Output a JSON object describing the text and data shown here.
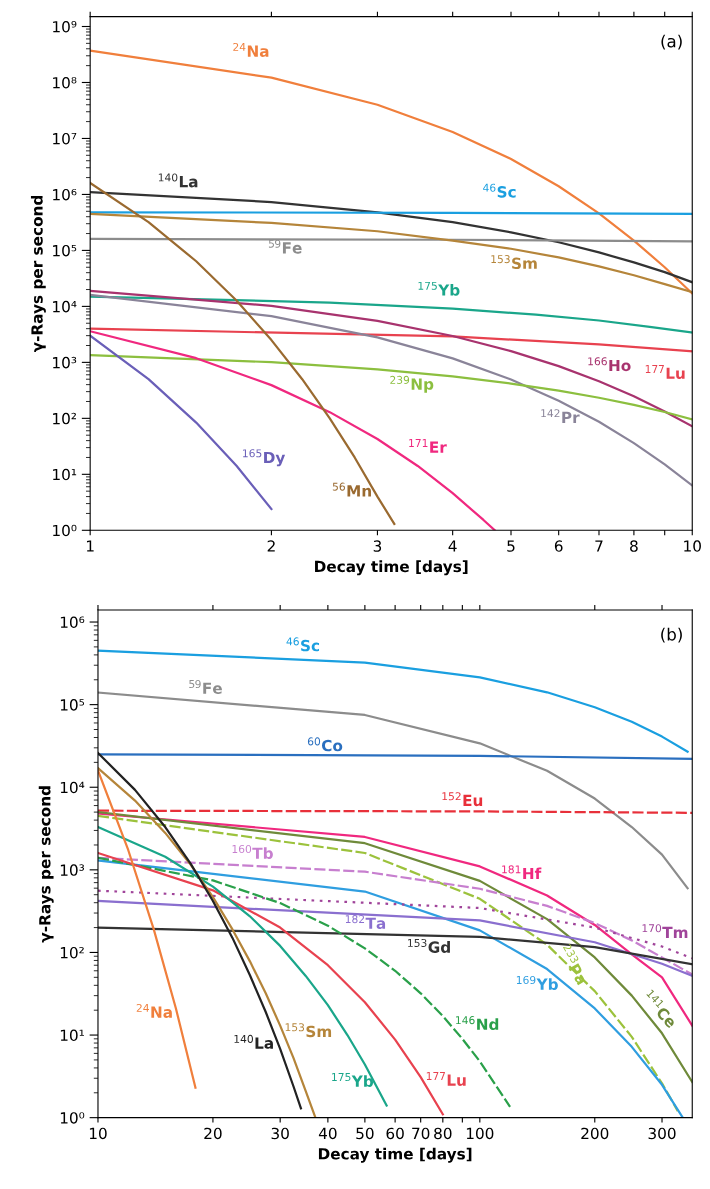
{
  "chart_data": [
    {
      "type": "line",
      "log": "xy",
      "xlabel": "Decay time [days]",
      "ylabel": "γ-Rays per second",
      "annotations": [
        "(a)"
      ],
      "grid": false,
      "legend": false,
      "marker": "none",
      "xlim": [
        1,
        10
      ],
      "ylim": [
        1,
        1500000000.0
      ],
      "xticks": [
        1,
        2,
        3,
        4,
        5,
        6,
        7,
        8,
        {
          "value": 9,
          "label": null
        },
        10
      ],
      "yticks": [
        {
          "value": 1,
          "label": "10⁰"
        },
        {
          "value": 10,
          "label": "10¹"
        },
        {
          "value": 100,
          "label": "10²"
        },
        {
          "value": 1000,
          "label": "10³"
        },
        {
          "value": 10000,
          "label": "10⁴"
        },
        {
          "value": 100000,
          "label": "10⁵"
        },
        {
          "value": 1000000,
          "label": "10⁶"
        },
        {
          "value": 10000000,
          "label": "10⁷"
        },
        {
          "value": 100000000,
          "label": "10⁸"
        },
        {
          "value": 1000000000,
          "label": "10⁹"
        }
      ],
      "series": [
        {
          "name": "$^{24}$Na",
          "color": "#f07f3c",
          "line_style": "solid",
          "x": [
            1,
            2,
            3,
            4,
            5,
            6,
            7,
            8,
            9,
            10
          ],
          "values": [
            370000000.0,
            122000000.0,
            40000000.0,
            13000000.0,
            4300000.0,
            1400000.0,
            460000.0,
            150000.0,
            50000.0,
            17000.0
          ]
        },
        {
          "name": "$^{140}$La",
          "color": "#333333",
          "line_style": "solid",
          "x": [
            1,
            2,
            3,
            4,
            5,
            6,
            7,
            8,
            9,
            10
          ],
          "values": [
            1100000.0,
            730000.0,
            480000.0,
            320000.0,
            210000.0,
            140000.0,
            92000.0,
            61000.0,
            41000.0,
            27000.0
          ]
        },
        {
          "name": "$^{46}$Sc",
          "color": "#1a9fe0",
          "line_style": "solid",
          "x": [
            1,
            4,
            10
          ],
          "values": [
            480000.0,
            470000.0,
            450000.0
          ]
        },
        {
          "name": "$^{59}$Fe",
          "color": "#8c8c8c",
          "line_style": "solid",
          "x": [
            1,
            4,
            10
          ],
          "values": [
            160000.0,
            155000.0,
            145000.0
          ]
        },
        {
          "name": "$^{153}$Sm",
          "color": "#b5853a",
          "line_style": "solid",
          "x": [
            1,
            2,
            3,
            4,
            5,
            6,
            7,
            8,
            9,
            10
          ],
          "values": [
            450000.0,
            310000.0,
            220000.0,
            150000.0,
            107000.0,
            75000.0,
            52000.0,
            36000.0,
            25000.0,
            18000.0
          ]
        },
        {
          "name": "$^{175}$Yb",
          "color": "#1aa68a",
          "line_style": "solid",
          "x": [
            1,
            2.5,
            4,
            5.5,
            7,
            8.5,
            10
          ],
          "values": [
            15000.0,
            11700.0,
            9100.0,
            7100.0,
            5600.0,
            4300.0,
            3400.0
          ]
        },
        {
          "name": "$^{177}$Lu",
          "color": "#e8424f",
          "line_style": "solid",
          "x": [
            1,
            4,
            7,
            10
          ],
          "values": [
            4000,
            2900,
            2100,
            1570
          ]
        },
        {
          "name": "$^{166}$Ho",
          "color": "#a8336e",
          "line_style": "solid",
          "x": [
            1,
            2,
            3,
            4,
            5,
            6,
            7,
            8,
            9,
            10
          ],
          "values": [
            19000.0,
            10200.0,
            5500,
            2960,
            1590,
            857,
            461,
            248,
            133,
            72
          ]
        },
        {
          "name": "$^{142}$Pr",
          "color": "#8a8499",
          "line_style": "solid",
          "x": [
            1,
            2,
            3,
            4,
            5,
            6,
            7,
            8,
            9,
            10
          ],
          "values": [
            16000.0,
            6700,
            2800,
            1180,
            494,
            207,
            87,
            36,
            15,
            6.3
          ]
        },
        {
          "name": "$^{239}$Np",
          "color": "#8cbf3f",
          "line_style": "solid",
          "x": [
            1,
            2,
            3,
            4,
            5,
            6,
            7,
            8,
            9,
            10
          ],
          "values": [
            1350,
            1007,
            751,
            560,
            418,
            312,
            233,
            174,
            130,
            96
          ]
        },
        {
          "name": "$^{171}$Er",
          "color": "#f0287f",
          "line_style": "solid",
          "x": [
            1,
            1.5,
            2,
            2.5,
            3,
            3.5,
            4,
            4.5,
            4.7
          ],
          "values": [
            3600,
            1188,
            392,
            129,
            42.7,
            14.1,
            4.6,
            1.53,
            1.0
          ]
        },
        {
          "name": "$^{165}$Dy",
          "color": "#6a5fb8",
          "line_style": "solid",
          "x": [
            1,
            1.25,
            1.5,
            1.75,
            2
          ],
          "values": [
            3000,
            503,
            84,
            14.2,
            2.4
          ]
        },
        {
          "name": "$^{56}$Mn",
          "color": "#9a6a30",
          "line_style": "solid",
          "x": [
            1,
            1.25,
            1.5,
            1.75,
            2,
            2.25,
            2.5,
            2.75,
            3,
            3.2
          ],
          "values": [
            1600000.0,
            320000.0,
            64000.0,
            12700.0,
            2500,
            500,
            100,
            20,
            4,
            1.3
          ]
        }
      ]
    },
    {
      "type": "line",
      "log": "xy",
      "xlabel": "Decay time [days]",
      "ylabel": "γ-Rays per second",
      "annotations": [
        "(b)"
      ],
      "grid": false,
      "legend": false,
      "marker": "none",
      "xlim": [
        10,
        360
      ],
      "ylim": [
        1,
        1400000.0
      ],
      "xticks": [
        10,
        20,
        30,
        40,
        50,
        60,
        70,
        80,
        {
          "value": 90,
          "label": null
        },
        100,
        200,
        300
      ],
      "yticks": [
        {
          "value": 1,
          "label": "10⁰"
        },
        {
          "value": 10,
          "label": "10¹"
        },
        {
          "value": 100,
          "label": "10²"
        },
        {
          "value": 1000,
          "label": "10³"
        },
        {
          "value": 10000,
          "label": "10⁴"
        },
        {
          "value": 100000,
          "label": "10⁵"
        },
        {
          "value": 1000000,
          "label": "10⁶"
        }
      ],
      "series": [
        {
          "name": "$^{46}$Sc",
          "color": "#1a9fe0",
          "line_style": "solid",
          "x": [
            10,
            50,
            100,
            150,
            200,
            250,
            300,
            350
          ],
          "values": [
            450000.0,
            323000.0,
            214000.0,
            141000.0,
            93000.0,
            62000.0,
            41000.0,
            27000.0
          ]
        },
        {
          "name": "$^{59}$Fe",
          "color": "#8c8c8c",
          "line_style": "solid",
          "x": [
            10,
            50,
            100,
            150,
            200,
            250,
            300,
            350
          ],
          "values": [
            140000.0,
            75000.0,
            34000.0,
            15800.0,
            7300,
            3300,
            1530,
            600
          ]
        },
        {
          "name": "$^{60}$Co",
          "color": "#2a6fbf",
          "line_style": "solid",
          "x": [
            10,
            100,
            360
          ],
          "values": [
            25000.0,
            24000.0,
            22000.0
          ]
        },
        {
          "name": "$^{152}$Eu",
          "color": "#e8303a",
          "line_style": "dashed",
          "x": [
            10,
            100,
            360
          ],
          "values": [
            5200,
            5100,
            4900
          ]
        },
        {
          "name": "$^{181}$Hf",
          "color": "#f0287f",
          "line_style": "solid",
          "x": [
            10,
            50,
            100,
            150,
            200,
            250,
            300,
            360
          ],
          "values": [
            4800,
            2500,
            1100,
            490,
            215,
            95,
            50,
            13
          ]
        },
        {
          "name": "$^{141}$Ce",
          "color": "#6f8a3a",
          "line_style": "solid",
          "x": [
            10,
            50,
            100,
            150,
            200,
            250,
            300,
            360
          ],
          "values": [
            5000,
            2100,
            735,
            253,
            87,
            30,
            10.5,
            2.7
          ]
        },
        {
          "name": "$^{233}$Pa",
          "color": "#9cc23c",
          "line_style": "dashed",
          "x": [
            10,
            50,
            100,
            150,
            200,
            250,
            300,
            330
          ],
          "values": [
            4500,
            1600,
            446,
            124,
            34,
            9.5,
            2.6,
            1.2
          ]
        },
        {
          "name": "$^{169}$Yb",
          "color": "#2f9ee0",
          "line_style": "solid",
          "x": [
            10,
            50,
            100,
            150,
            200,
            250,
            300,
            340
          ],
          "values": [
            1300,
            546,
            185,
            63,
            21,
            7.2,
            2.5,
            1.0
          ]
        },
        {
          "name": "$^{160}$Tb",
          "color": "#c77fcf",
          "line_style": "dashed",
          "x": [
            10,
            50,
            100,
            150,
            200,
            250,
            300,
            360
          ],
          "values": [
            1400,
            950,
            590,
            366,
            227,
            140,
            87,
            54
          ]
        },
        {
          "name": "$^{170}$Tm",
          "color": "#a0449a",
          "line_style": "dotted",
          "x": [
            10,
            100,
            200,
            300,
            360
          ],
          "values": [
            560,
            345,
            200,
            118,
            85
          ]
        },
        {
          "name": "$^{182}$Ta",
          "color": "#8a6fcf",
          "line_style": "solid",
          "x": [
            10,
            100,
            200,
            300,
            360
          ],
          "values": [
            420,
            244,
            133,
            73,
            52
          ]
        },
        {
          "name": "$^{153}$Gd",
          "color": "#333333",
          "line_style": "solid",
          "x": [
            10,
            100,
            200,
            360
          ],
          "values": [
            200,
            154,
            116,
            72
          ]
        },
        {
          "name": "$^{146}$Nd",
          "color": "#2aa04a",
          "line_style": "dashed",
          "x": [
            10,
            20,
            30,
            40,
            50,
            60,
            70,
            80,
            90,
            100,
            120
          ],
          "values": [
            1400,
            745,
            396,
            211,
            112,
            60,
            32,
            17,
            9,
            4.8,
            1.35
          ]
        },
        {
          "name": "$^{177}$Lu",
          "color": "#e8424f",
          "line_style": "solid",
          "x": [
            10,
            20,
            30,
            40,
            50,
            60,
            70,
            80
          ],
          "values": [
            1600,
            565,
            200,
            70,
            25,
            8.8,
            3.1,
            1.1
          ]
        },
        {
          "name": "$^{175}$Yb",
          "color": "#1aa68a",
          "line_style": "solid",
          "x": [
            10,
            15,
            20,
            25,
            30,
            35,
            40,
            45,
            50,
            57
          ],
          "values": [
            3300,
            1440,
            627,
            274,
            120,
            52,
            23,
            10,
            4.4,
            1.4
          ]
        },
        {
          "name": "$^{153}$Sm",
          "color": "#b5853a",
          "line_style": "solid",
          "x": [
            10,
            12.5,
            15,
            17.5,
            20,
            22.5,
            25,
            27.5,
            30,
            32.5,
            35,
            37
          ],
          "values": [
            17000.0,
            6900,
            2800,
            1150,
            468,
            190,
            78,
            32,
            13,
            5.3,
            2.1,
            1.04
          ]
        },
        {
          "name": "$^{140}$La",
          "color": "#222222",
          "line_style": "solid",
          "x": [
            10,
            12.5,
            15,
            17.5,
            20,
            22.5,
            25,
            27.5,
            30,
            32.5,
            34
          ],
          "values": [
            26000.0,
            9300,
            3300,
            1180,
            420,
            150,
            53,
            19,
            6.8,
            2.4,
            1.3
          ]
        },
        {
          "name": "$^{24}$Na",
          "color": "#f07f3c",
          "line_style": "solid",
          "x": [
            10,
            12,
            14,
            16,
            18
          ],
          "values": [
            16000.0,
            1740,
            190,
            21,
            2.3
          ]
        }
      ]
    }
  ]
}
